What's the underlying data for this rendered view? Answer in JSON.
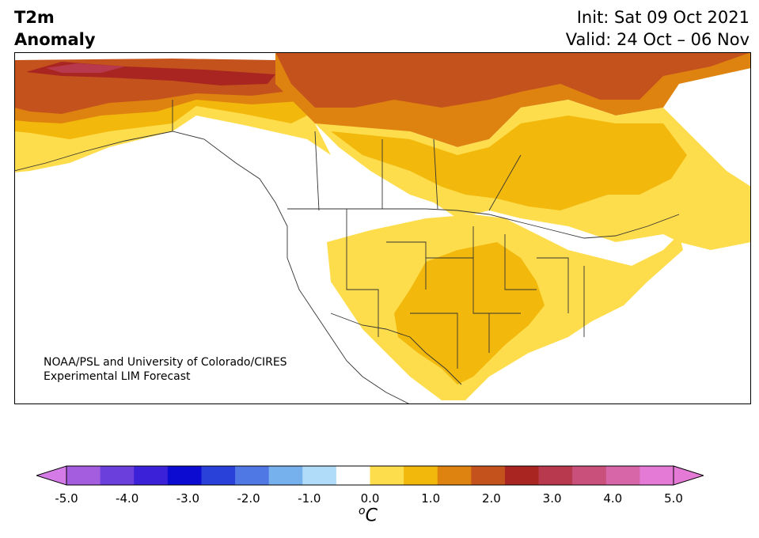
{
  "title": {
    "left_line1": "T2m",
    "left_line2": "Anomaly",
    "right_line1": "Init: Sat 09 Oct 2021",
    "right_line2": "Valid: 24 Oct – 06 Nov"
  },
  "credit": {
    "line1": "NOAA/PSL and University of Colorado/CIRES",
    "line2": "Experimental LIM Forecast"
  },
  "colorbar": {
    "unit_prefix": "o",
    "unit": "C",
    "ticks": [
      "-5.0",
      "-4.0",
      "-3.0",
      "-2.0",
      "-1.0",
      "0.0",
      "1.0",
      "2.0",
      "3.0",
      "4.0",
      "5.0"
    ],
    "levels": [
      -5.0,
      -4.5,
      -4.0,
      -3.5,
      -3.0,
      -2.5,
      -2.0,
      -1.5,
      -1.0,
      -0.5,
      0.5,
      1.0,
      1.5,
      2.0,
      2.5,
      3.0,
      3.5,
      4.0,
      4.5,
      5.0
    ],
    "colors": [
      "#a55de0",
      "#6b3fdc",
      "#3b22d8",
      "#0b0bd1",
      "#2941d9",
      "#4f78e4",
      "#76b1ee",
      "#b0dcfa",
      "#ffffff",
      "#fedd4c",
      "#f3b80c",
      "#de8310",
      "#c4521c",
      "#a92521",
      "#b8394d",
      "#c9507a",
      "#d766a8",
      "#e47ad6"
    ],
    "extend_low_color": "#d47be8",
    "extend_high_color": "#e47ad6"
  },
  "map_colors": {
    "c1": "#fedd4c",
    "c15": "#f3b80c",
    "c2": "#de8310",
    "c25": "#c4521c",
    "c3": "#a92521",
    "c35": "#b8394d",
    "land": "#ffffff",
    "border": "#333333"
  }
}
